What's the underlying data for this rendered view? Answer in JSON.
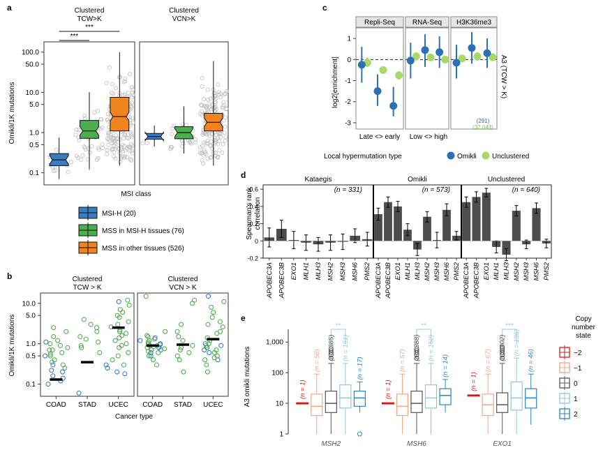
{
  "panels": {
    "a": {
      "letter": "a",
      "ylabel": "Omikli/1K mutations",
      "xlabel": "MSI class",
      "facets": [
        "Clustered\nTCW>K",
        "Clustered\nVCN>K"
      ],
      "yticks": [
        "0.1",
        "0.5",
        "1.0",
        "5.0",
        "10.0",
        "50.0",
        "100.0"
      ],
      "significance": [
        "***",
        "***"
      ],
      "legend": [
        {
          "label": "MSI-H (20)",
          "color": "#3a7dbf"
        },
        {
          "label": "MSS in MSI-H tissues (76)",
          "color": "#4cae4c"
        },
        {
          "label": "MSS in other tissues (526)",
          "color": "#f2841f"
        }
      ]
    },
    "b": {
      "letter": "b",
      "ylabel": "Omikli/1K mutations",
      "xlabel": "Cancer type",
      "facets": [
        "Clustered\nTCW > K",
        "Clustered\nVCN > K"
      ],
      "categories": [
        "COAD",
        "STAD",
        "UCEC"
      ],
      "yticks": [
        "0.1",
        "0.5",
        "1.0",
        "5.0",
        "10.0"
      ]
    },
    "c": {
      "letter": "c",
      "ylabel": "log2[enrichment]",
      "facets": [
        "Repli-Seq",
        "RNA-Seq",
        "H3K36me3"
      ],
      "right_label": "A3 (TCW > K)",
      "yticks": [
        "-3",
        "-2",
        "-1",
        "0",
        "1"
      ],
      "xaxis_labels": [
        "Late <> early",
        "Low <> high"
      ],
      "counts": [
        "(291)",
        "(32,043)"
      ],
      "legend_title": "Local hypermutation type",
      "legend": [
        {
          "label": "Omikli",
          "color": "#2a72b5"
        },
        {
          "label": "Unclustered",
          "color": "#a6d96a"
        }
      ]
    },
    "d": {
      "letter": "d",
      "ylabel": "Spearman's rank\ncorrelation",
      "facets": [
        "Kataegis",
        "Omikli",
        "Unclustered"
      ],
      "n_labels": [
        "(n = 331)",
        "(n = 573)",
        "(n = 640)"
      ],
      "yticks": [
        "-0.2",
        "0",
        "0.2",
        "0.4",
        "0.6"
      ],
      "genes": [
        "APOBEC3A",
        "APOBEC3B",
        "EXO1",
        "MLH1",
        "MLH3",
        "MSH2",
        "MSH3",
        "MSH6",
        "PMS2"
      ]
    },
    "e": {
      "letter": "e",
      "ylabel": "A3 omikli mutations",
      "genes": [
        "MSH2",
        "MSH6",
        "EXO1"
      ],
      "yticks": [
        "1",
        "10",
        "100",
        "1,000"
      ],
      "significance": [
        "**",
        "**",
        "***"
      ],
      "legend_title": "Copy\nnumber\nstate",
      "legend": [
        {
          "label": "−2",
          "color": "#d7191c"
        },
        {
          "label": "−1",
          "color": "#f4a582"
        },
        {
          "label": "0",
          "color": "#555555"
        },
        {
          "label": "1",
          "color": "#92c5de"
        },
        {
          "label": "2",
          "color": "#2b83ba"
        }
      ],
      "n_labels": [
        [
          "(n = 1)",
          "(n = 58)",
          "(n = 385)",
          "(n = 151)",
          "(n = 17)"
        ],
        [
          "(n = 1)",
          "(n = 57)",
          "(n = 388)",
          "(n = 152)",
          "(n = 14)"
        ],
        [
          "(n = 1)",
          "(n = 67)",
          "(n = 302)",
          "(n = 196)",
          "(n = 46)"
        ]
      ]
    }
  },
  "chart_data": [
    {
      "panel": "a",
      "type": "box",
      "yscale": "log",
      "ylim": [
        0.05,
        180
      ],
      "series_colors": [
        "#3a7dbf",
        "#4cae4c",
        "#f2841f"
      ],
      "facets": [
        {
          "boxes": [
            {
              "q1": 0.15,
              "median": 0.21,
              "q3": 0.3,
              "lo": 0.07,
              "hi": 0.75
            },
            {
              "q1": 0.72,
              "median": 1.1,
              "q3": 2.0,
              "lo": 0.12,
              "hi": 10
            },
            {
              "q1": 1.1,
              "median": 2.5,
              "q3": 7.5,
              "lo": 0.15,
              "hi": 100
            }
          ]
        },
        {
          "boxes": [
            {
              "q1": 0.68,
              "median": 0.8,
              "q3": 0.95,
              "lo": 0.45,
              "hi": 1.5
            },
            {
              "q1": 0.7,
              "median": 1.0,
              "q3": 1.4,
              "lo": 0.3,
              "hi": 4.5
            },
            {
              "q1": 1.1,
              "median": 1.8,
              "q3": 3.0,
              "lo": 0.15,
              "hi": 60
            }
          ]
        }
      ]
    },
    {
      "panel": "b",
      "type": "scatter",
      "yscale": "log",
      "ylim": [
        0.05,
        18
      ],
      "facets": [
        {
          "medians": [
            0.13,
            0.35,
            2.5
          ],
          "blue": [
            [
              0.1,
              1.1,
              0.2,
              0.3,
              0.22,
              0.16,
              0.12,
              0.14,
              0.5
            ],
            [
              0.06
            ],
            [
              0.2,
              0.3,
              11,
              0.18,
              0.25
            ]
          ],
          "green": [
            [
              0.3,
              0.5,
              0.7,
              0.9,
              1.2,
              1.5,
              2,
              0.4,
              0.6,
              0.8,
              1.0,
              0.25,
              0.35,
              2.5,
              0.7,
              0.55
            ],
            [
              0.6,
              0.9,
              1.3,
              2,
              3,
              1.5,
              0.8,
              1.1,
              2.5,
              4
            ],
            [
              0.3,
              0.5,
              0.8,
              1,
              1.4,
              2,
              3,
              4.5,
              6,
              9,
              0.6,
              1.2,
              1.8,
              2.6,
              3.5,
              5,
              7,
              12,
              0.4,
              0.9,
              1.6,
              2.2
            ]
          ]
        },
        {
          "medians": [
            0.9,
            0.95,
            1.3
          ],
          "blue": [
            [
              0.5,
              0.7,
              0.9,
              1.0,
              1.2,
              0.8,
              0.6,
              0.95,
              1.4
            ],
            [],
            [
              0.4,
              0.6,
              0.8,
              1.0,
              15,
              0.7,
              0.9
            ]
          ],
          "green": [
            [
              0.3,
              0.5,
              0.7,
              0.9,
              1.2,
              1.5,
              2,
              0.4,
              0.6,
              0.8,
              1.0,
              1.1,
              1.3,
              0.75,
              0.65,
              0.85,
              1.6,
              15
            ],
            [
              0.2,
              0.5,
              0.7,
              0.9,
              1.2,
              1.5,
              2,
              3,
              0.4,
              0.6,
              0.8,
              10,
              12
            ],
            [
              0.2,
              0.4,
              0.6,
              0.8,
              1,
              1.4,
              2,
              3,
              4.5,
              6,
              8,
              0.5,
              0.7,
              0.9,
              1.2,
              1.8,
              2.6,
              3.5,
              11,
              0.3,
              0.45
            ]
          ]
        }
      ]
    },
    {
      "panel": "c",
      "type": "errorbar",
      "ylim": [
        -3.3,
        1.5
      ],
      "facets": [
        {
          "omikli": [
            [
              -0.25,
              -1.1,
              0.6
            ],
            [
              -1.5,
              -2.2,
              -0.7
            ],
            [
              -2.2,
              -2.7,
              -1.3
            ]
          ],
          "unclustered": [
            [
              -0.15,
              -0.35,
              0.1
            ],
            [
              -0.5,
              -0.65,
              -0.35
            ],
            [
              -0.75,
              -0.95,
              -0.55
            ]
          ]
        },
        {
          "omikli": [
            [
              -0.05,
              -0.9,
              0.8
            ],
            [
              0.45,
              -0.35,
              1.2
            ],
            [
              0.35,
              -0.4,
              1.1
            ]
          ],
          "unclustered": [
            [
              0.15,
              -0.05,
              0.35
            ],
            [
              0.1,
              -0.05,
              0.25
            ],
            [
              0.0,
              -0.15,
              0.15
            ]
          ]
        },
        {
          "omikli": [
            [
              -0.15,
              -0.9,
              0.7
            ],
            [
              0.55,
              -0.2,
              1.3
            ],
            [
              0.3,
              -0.4,
              1.0
            ]
          ],
          "unclustered": [
            [
              0.05,
              -0.1,
              0.2
            ],
            [
              0.15,
              -0.05,
              0.35
            ],
            [
              0.1,
              -0.05,
              0.3
            ]
          ]
        }
      ]
    },
    {
      "panel": "d",
      "type": "bar",
      "ylim": [
        -0.2,
        0.65
      ],
      "facets": [
        {
          "values": [
            0.04,
            0.14,
            0.01,
            -0.02,
            -0.04,
            -0.02,
            -0.01,
            0.06,
            0.02
          ],
          "err": [
            0.11,
            0.1,
            0.1,
            0.09,
            0.08,
            0.09,
            0.09,
            0.08,
            0.08
          ]
        },
        {
          "values": [
            0.31,
            0.45,
            0.4,
            0.13,
            -0.1,
            0.28,
            0.01,
            0.36,
            0.06
          ],
          "err": [
            0.07,
            0.06,
            0.06,
            0.07,
            0.07,
            0.06,
            0.09,
            0.07,
            0.05
          ]
        },
        {
          "values": [
            0.45,
            0.51,
            0.56,
            -0.07,
            -0.16,
            0.35,
            -0.04,
            0.38,
            -0.03
          ],
          "err": [
            0.06,
            0.06,
            0.05,
            0.07,
            0.07,
            0.06,
            0.05,
            0.06,
            0.05
          ]
        }
      ]
    },
    {
      "panel": "e",
      "type": "box",
      "yscale": "log",
      "ylim": [
        1,
        3000
      ],
      "groups": [
        {
          "gene": "MSH2",
          "boxes": [
            {
              "median": 10
            },
            {
              "q1": 4,
              "median": 8,
              "q3": 20,
              "lo": 1,
              "hi": 90
            },
            {
              "q1": 5,
              "median": 10,
              "q3": 25,
              "lo": 1,
              "hi": 200,
              "outliers": [
                300,
                380,
                450,
                520,
                600
              ]
            },
            {
              "q1": 7,
              "median": 15,
              "q3": 40,
              "lo": 1,
              "hi": 200
            },
            {
              "q1": 8,
              "median": 15,
              "q3": 25,
              "lo": 5,
              "hi": 50,
              "outliers": [
                1
              ]
            }
          ]
        },
        {
          "gene": "MSH6",
          "boxes": [
            {
              "median": 10
            },
            {
              "q1": 4,
              "median": 8,
              "q3": 20,
              "lo": 1,
              "hi": 90
            },
            {
              "q1": 5,
              "median": 10,
              "q3": 25,
              "lo": 1,
              "hi": 200,
              "outliers": [
                300,
                380,
                450,
                520,
                600
              ]
            },
            {
              "q1": 7,
              "median": 15,
              "q3": 40,
              "lo": 1,
              "hi": 200
            },
            {
              "q1": 9,
              "median": 18,
              "q3": 30,
              "lo": 5,
              "hi": 60
            }
          ]
        },
        {
          "gene": "EXO1",
          "boxes": [
            {
              "median": 18
            },
            {
              "q1": 4,
              "median": 9,
              "q3": 20,
              "lo": 1,
              "hi": 90
            },
            {
              "q1": 5,
              "median": 9,
              "q3": 22,
              "lo": 1,
              "hi": 200,
              "outliers": [
                300,
                380,
                450,
                520,
                600,
                680
              ]
            },
            {
              "q1": 6,
              "median": 15,
              "q3": 50,
              "lo": 1,
              "hi": 300
            },
            {
              "q1": 7,
              "median": 15,
              "q3": 30,
              "lo": 2,
              "hi": 90
            }
          ]
        }
      ]
    }
  ]
}
